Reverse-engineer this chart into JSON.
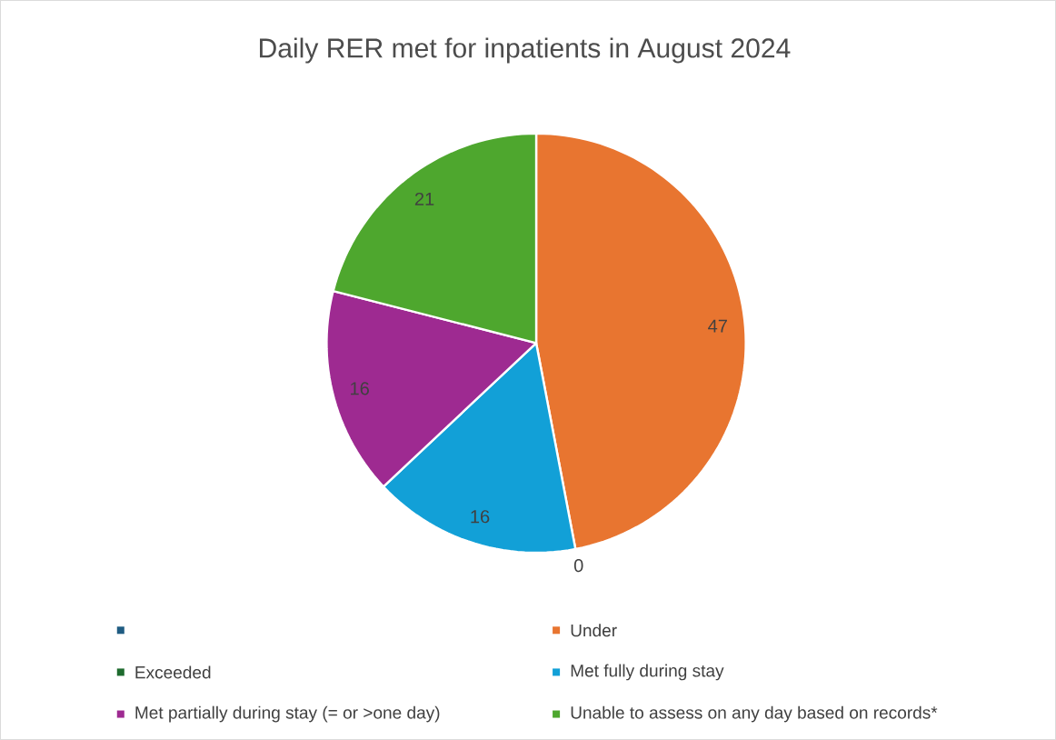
{
  "chart_data": {
    "type": "pie",
    "title": "Daily RER met for inpatients in August 2024",
    "categories": [
      null,
      "Under",
      "Exceeded",
      "Met fully during stay",
      "Met partially during stay (= or >one day)",
      "Unable to assess on any day based on records*"
    ],
    "values": [
      0,
      47,
      0,
      16,
      16,
      21
    ],
    "colors": [
      "#1f5c82",
      "#e87530",
      "#1e6b2e",
      "#12a0d7",
      "#9e2a91",
      "#4ea72e"
    ],
    "value_labels": [
      null,
      "47",
      "0",
      "16",
      "16",
      "21"
    ],
    "legend": "bottom"
  }
}
